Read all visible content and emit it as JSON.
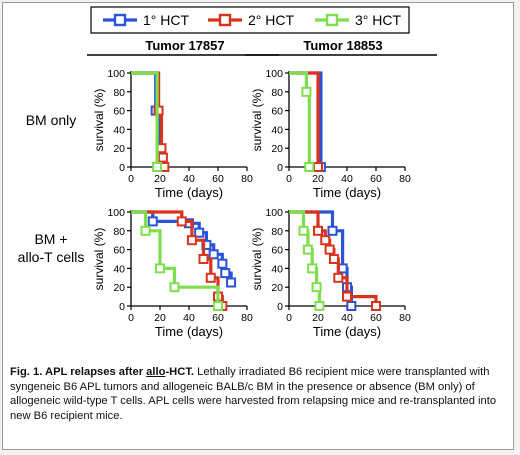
{
  "legend": [
    {
      "label": "1° HCT",
      "color": "#2a53d6"
    },
    {
      "label": "2° HCT",
      "color": "#d9331e"
    },
    {
      "label": "3° HCT",
      "color": "#7ede4e"
    }
  ],
  "columns": [
    "Tumor 17857",
    "Tumor 18853"
  ],
  "rows": [
    "BM only",
    "BM +\nallo-T cells"
  ],
  "caption": {
    "title_a": "Fig. 1. APL relapses after ",
    "title_b": "allo",
    "title_c": "-HCT.",
    "body": " Lethally irradiated B6 recipient mice were transplanted with syngeneic B6 APL tumors and allogeneic BALB/c BM in the presence or absence (BM only) of allogeneic wild-type T cells. APL cells were harvested from relapsing mice and re-transplanted into new B6 recipient mice."
  },
  "chart_data": [
    {
      "type": "line",
      "panel": "Tumor 17857 / BM only",
      "xlabel": "Time (days)",
      "ylabel": "survival (%)",
      "xlim": [
        0,
        80
      ],
      "ylim": [
        0,
        100
      ],
      "xticks": [
        0,
        20,
        40,
        60,
        80
      ],
      "yticks": [
        0,
        20,
        40,
        60,
        80,
        100
      ],
      "series": [
        {
          "name": "1° HCT",
          "x": [
            0,
            17,
            17,
            19,
            19
          ],
          "y": [
            100,
            100,
            60,
            60,
            0
          ]
        },
        {
          "name": "2° HCT",
          "x": [
            0,
            19,
            19,
            21,
            21,
            22,
            22,
            23,
            23
          ],
          "y": [
            100,
            100,
            60,
            60,
            20,
            20,
            10,
            10,
            0
          ]
        },
        {
          "name": "3° HCT",
          "x": [
            0,
            18,
            18
          ],
          "y": [
            100,
            100,
            0
          ]
        }
      ]
    },
    {
      "type": "line",
      "panel": "Tumor 18853 / BM only",
      "xlabel": "Time (days)",
      "ylabel": "survival (%)",
      "xlim": [
        0,
        80
      ],
      "ylim": [
        0,
        100
      ],
      "xticks": [
        0,
        20,
        40,
        60,
        80
      ],
      "yticks": [
        0,
        20,
        40,
        60,
        80,
        100
      ],
      "series": [
        {
          "name": "1° HCT",
          "x": [
            0,
            22,
            22
          ],
          "y": [
            100,
            100,
            0
          ]
        },
        {
          "name": "2° HCT",
          "x": [
            0,
            20,
            20
          ],
          "y": [
            100,
            100,
            0
          ]
        },
        {
          "name": "3° HCT",
          "x": [
            0,
            12,
            12,
            14,
            14
          ],
          "y": [
            100,
            100,
            80,
            80,
            0
          ]
        }
      ]
    },
    {
      "type": "line",
      "panel": "Tumor 17857 / BM + allo-T cells",
      "xlabel": "Time (days)",
      "ylabel": "survival (%)",
      "xlim": [
        0,
        80
      ],
      "ylim": [
        0,
        100
      ],
      "xticks": [
        0,
        20,
        40,
        60,
        80
      ],
      "yticks": [
        0,
        20,
        40,
        60,
        80,
        100
      ],
      "series": [
        {
          "name": "1° HCT",
          "x": [
            0,
            15,
            15,
            40,
            40,
            47,
            47,
            52,
            52,
            57,
            57,
            63,
            63,
            65,
            65,
            69,
            69
          ],
          "y": [
            100,
            100,
            90,
            90,
            88,
            88,
            78,
            78,
            65,
            65,
            55,
            55,
            45,
            45,
            35,
            35,
            25
          ]
        },
        {
          "name": "2° HCT",
          "x": [
            0,
            35,
            35,
            42,
            42,
            50,
            50,
            55,
            55,
            60,
            60,
            63,
            63
          ],
          "y": [
            100,
            100,
            90,
            90,
            70,
            70,
            50,
            50,
            30,
            30,
            10,
            10,
            0
          ]
        },
        {
          "name": "3° HCT",
          "x": [
            0,
            10,
            10,
            20,
            20,
            30,
            30,
            40,
            40,
            50,
            50,
            60,
            60
          ],
          "y": [
            100,
            100,
            80,
            80,
            40,
            40,
            20,
            20,
            20,
            20,
            20,
            20,
            0
          ]
        }
      ]
    },
    {
      "type": "line",
      "panel": "Tumor 18853 / BM + allo-T cells",
      "xlabel": "Time (days)",
      "ylabel": "survival (%)",
      "xlim": [
        0,
        80
      ],
      "ylim": [
        0,
        100
      ],
      "xticks": [
        0,
        20,
        40,
        60,
        80
      ],
      "yticks": [
        0,
        20,
        40,
        60,
        80,
        100
      ],
      "series": [
        {
          "name": "1° HCT",
          "x": [
            0,
            30,
            30,
            37,
            37,
            40,
            40,
            43,
            43
          ],
          "y": [
            100,
            100,
            80,
            80,
            40,
            40,
            20,
            20,
            0
          ]
        },
        {
          "name": "2° HCT",
          "x": [
            0,
            20,
            20,
            25,
            25,
            28,
            28,
            31,
            31,
            34,
            34,
            40,
            40,
            60,
            60
          ],
          "y": [
            100,
            100,
            80,
            80,
            70,
            70,
            60,
            60,
            50,
            50,
            30,
            30,
            10,
            10,
            0
          ]
        },
        {
          "name": "3° HCT",
          "x": [
            0,
            10,
            10,
            13,
            13,
            16,
            16,
            19,
            19,
            21,
            21
          ],
          "y": [
            100,
            100,
            80,
            80,
            60,
            60,
            40,
            40,
            20,
            20,
            0
          ]
        }
      ]
    }
  ]
}
